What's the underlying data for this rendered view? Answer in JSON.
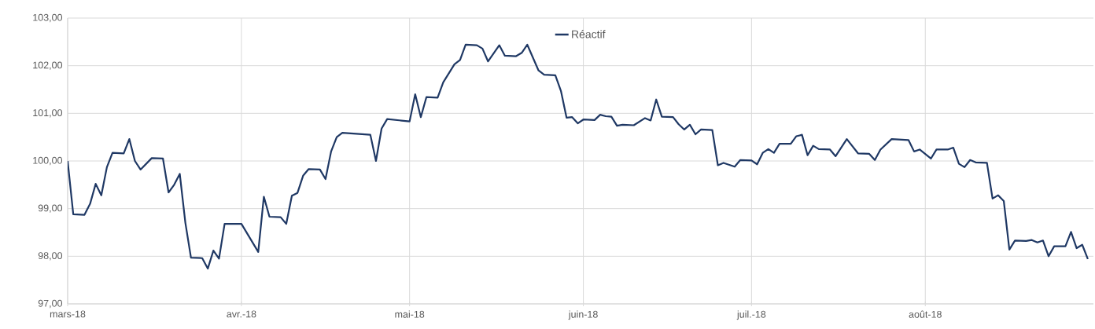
{
  "chart_data": {
    "type": "line",
    "x": [
      "2018-03-01",
      "2018-03-02",
      "2018-03-04",
      "2018-03-05",
      "2018-03-06",
      "2018-03-07",
      "2018-03-08",
      "2018-03-09",
      "2018-03-11",
      "2018-03-12",
      "2018-03-13",
      "2018-03-14",
      "2018-03-16",
      "2018-03-18",
      "2018-03-19",
      "2018-03-20",
      "2018-03-21",
      "2018-03-22",
      "2018-03-23",
      "2018-03-25",
      "2018-03-26",
      "2018-03-27",
      "2018-03-28",
      "2018-03-29",
      "2018-04-01",
      "2018-04-04",
      "2018-04-05",
      "2018-04-06",
      "2018-04-08",
      "2018-04-09",
      "2018-04-10",
      "2018-04-11",
      "2018-04-12",
      "2018-04-13",
      "2018-04-15",
      "2018-04-16",
      "2018-04-17",
      "2018-04-18",
      "2018-04-19",
      "2018-04-24",
      "2018-04-25",
      "2018-04-26",
      "2018-04-27",
      "2018-05-01",
      "2018-05-02",
      "2018-05-03",
      "2018-05-04",
      "2018-05-06",
      "2018-05-07",
      "2018-05-09",
      "2018-05-10",
      "2018-05-11",
      "2018-05-13",
      "2018-05-14",
      "2018-05-15",
      "2018-05-17",
      "2018-05-18",
      "2018-05-20",
      "2018-05-21",
      "2018-05-22",
      "2018-05-24",
      "2018-05-25",
      "2018-05-27",
      "2018-05-28",
      "2018-05-29",
      "2018-05-30",
      "2018-05-31",
      "2018-06-01",
      "2018-06-03",
      "2018-06-04",
      "2018-06-05",
      "2018-06-06",
      "2018-06-07",
      "2018-06-08",
      "2018-06-10",
      "2018-06-12",
      "2018-06-13",
      "2018-06-14",
      "2018-06-15",
      "2018-06-17",
      "2018-06-18",
      "2018-06-19",
      "2018-06-20",
      "2018-06-21",
      "2018-06-22",
      "2018-06-24",
      "2018-06-25",
      "2018-06-26",
      "2018-06-28",
      "2018-06-29",
      "2018-07-01",
      "2018-07-02",
      "2018-07-03",
      "2018-07-04",
      "2018-07-05",
      "2018-07-06",
      "2018-07-08",
      "2018-07-09",
      "2018-07-10",
      "2018-07-11",
      "2018-07-12",
      "2018-07-13",
      "2018-07-15",
      "2018-07-16",
      "2018-07-18",
      "2018-07-20",
      "2018-07-22",
      "2018-07-23",
      "2018-07-24",
      "2018-07-26",
      "2018-07-29",
      "2018-07-30",
      "2018-07-31",
      "2018-08-02",
      "2018-08-03",
      "2018-08-05",
      "2018-08-06",
      "2018-08-07",
      "2018-08-08",
      "2018-08-09",
      "2018-08-10",
      "2018-08-12",
      "2018-08-13",
      "2018-08-14",
      "2018-08-15",
      "2018-08-16",
      "2018-08-17",
      "2018-08-19",
      "2018-08-20",
      "2018-08-21",
      "2018-08-22",
      "2018-08-23",
      "2018-08-24",
      "2018-08-26",
      "2018-08-27",
      "2018-08-28",
      "2018-08-29",
      "2018-08-30"
    ],
    "series": [
      {
        "name": "Réactif",
        "color": "#1f3864",
        "values": [
          100.0,
          98.88,
          98.87,
          99.1,
          99.52,
          99.28,
          99.87,
          100.17,
          100.16,
          100.46,
          100.0,
          99.82,
          100.06,
          100.05,
          99.34,
          99.5,
          99.73,
          98.7,
          97.97,
          97.96,
          97.74,
          98.12,
          97.95,
          98.68,
          98.68,
          98.09,
          99.25,
          98.83,
          98.82,
          98.68,
          99.27,
          99.33,
          99.69,
          99.83,
          99.82,
          99.62,
          100.2,
          100.5,
          100.59,
          100.55,
          100.0,
          100.68,
          100.88,
          100.83,
          101.4,
          100.92,
          101.34,
          101.33,
          101.65,
          102.03,
          102.12,
          102.44,
          102.43,
          102.36,
          102.09,
          102.43,
          102.21,
          102.2,
          102.27,
          102.44,
          101.9,
          101.81,
          101.8,
          101.47,
          100.91,
          100.92,
          100.79,
          100.87,
          100.86,
          100.97,
          100.94,
          100.93,
          100.74,
          100.76,
          100.75,
          100.9,
          100.85,
          101.29,
          100.93,
          100.92,
          100.77,
          100.66,
          100.76,
          100.56,
          100.66,
          100.65,
          99.91,
          99.96,
          99.88,
          100.02,
          100.01,
          99.93,
          100.17,
          100.25,
          100.17,
          100.36,
          100.36,
          100.52,
          100.55,
          100.12,
          100.32,
          100.25,
          100.24,
          100.1,
          100.46,
          100.16,
          100.15,
          100.02,
          100.24,
          100.46,
          100.44,
          100.2,
          100.24,
          100.05,
          100.24,
          100.24,
          100.28,
          99.94,
          99.87,
          100.02,
          99.97,
          99.96,
          99.21,
          99.28,
          99.16,
          98.14,
          98.33,
          98.32,
          98.34,
          98.29,
          98.33,
          98.0,
          98.21,
          98.21,
          98.51,
          98.17,
          98.24,
          97.94
        ]
      }
    ],
    "xlim": [
      "2018-03-01",
      "2018-08-31"
    ],
    "xticks": [
      {
        "value": "2018-03-01",
        "label": "mars-18"
      },
      {
        "value": "2018-04-01",
        "label": "avr.-18"
      },
      {
        "value": "2018-05-01",
        "label": "mai-18"
      },
      {
        "value": "2018-06-01",
        "label": "juin-18"
      },
      {
        "value": "2018-07-01",
        "label": "juil.-18"
      },
      {
        "value": "2018-08-01",
        "label": "août-18"
      }
    ],
    "ylim": [
      97,
      103
    ],
    "yticks": [
      {
        "value": 97,
        "label": "97,00"
      },
      {
        "value": 98,
        "label": "98,00"
      },
      {
        "value": 99,
        "label": "99,00"
      },
      {
        "value": 100,
        "label": "100,00"
      },
      {
        "value": 101,
        "label": "101,00"
      },
      {
        "value": 102,
        "label": "102,00"
      },
      {
        "value": 103,
        "label": "103,00"
      }
    ],
    "grid": true,
    "legend": "top",
    "marker": "none",
    "line_style": "solid"
  }
}
